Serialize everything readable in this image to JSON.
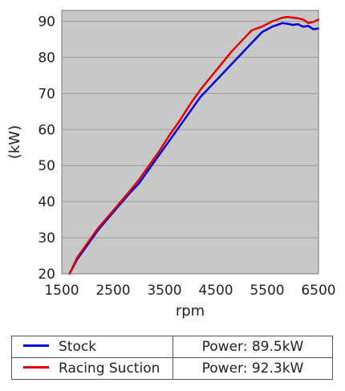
{
  "chart_data": {
    "type": "line",
    "title": "",
    "xlabel": "rpm",
    "ylabel": "(kW)",
    "xlim": [
      1500,
      6500
    ],
    "ylim": [
      20,
      93
    ],
    "xticks": [
      1500,
      2500,
      3500,
      4500,
      5500,
      6500
    ],
    "yticks": [
      20,
      30,
      40,
      50,
      60,
      70,
      80,
      90
    ],
    "grid": true,
    "background": "#c8c8c8",
    "legend_position": "bottom-table",
    "series": [
      {
        "name": "Stock",
        "color": "#0000dd",
        "summary": "Power: 89.5kW",
        "x": [
          1650,
          1800,
          2000,
          2200,
          2500,
          2800,
          3000,
          3200,
          3400,
          3600,
          3800,
          4000,
          4200,
          4400,
          4600,
          4800,
          5000,
          5200,
          5400,
          5600,
          5800,
          5900,
          6000,
          6100,
          6200,
          6300,
          6400,
          6500
        ],
        "y": [
          20,
          24,
          28,
          32,
          37,
          42,
          45,
          49,
          53,
          57,
          61,
          65,
          69,
          72,
          75,
          78,
          81,
          84,
          87,
          88.5,
          89.5,
          89.3,
          89,
          89.2,
          88.5,
          88.7,
          87.8,
          88
        ]
      },
      {
        "name": "Racing Suction",
        "color": "#e00000",
        "summary": "Power: 92.3kW",
        "x": [
          1650,
          1800,
          2000,
          2200,
          2500,
          2800,
          3000,
          3200,
          3400,
          3600,
          3800,
          4000,
          4200,
          4400,
          4600,
          4800,
          5000,
          5200,
          5400,
          5600,
          5800,
          5900,
          6000,
          6100,
          6200,
          6300,
          6400,
          6500
        ],
        "y": [
          20,
          24.5,
          28.5,
          32.5,
          37.5,
          42.5,
          46,
          50,
          54,
          58.5,
          62.5,
          67,
          71,
          74.5,
          78,
          81.5,
          84.5,
          87.5,
          88.5,
          90,
          91,
          91.2,
          91,
          90.8,
          90.5,
          89.5,
          89.8,
          90.5
        ]
      }
    ]
  }
}
